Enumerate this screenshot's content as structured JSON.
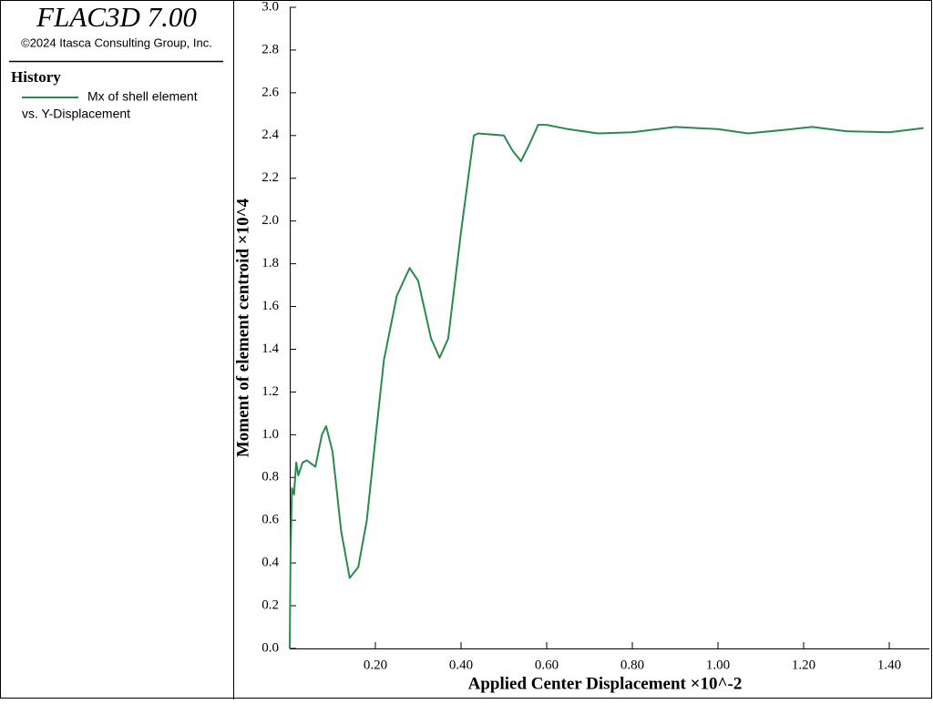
{
  "panel": {
    "product": "FLAC3D 7.00",
    "copyright": "©2024 Itasca Consulting Group, Inc.",
    "section": "History",
    "legend_note": "vs. Y-Displacement"
  },
  "chart_data": {
    "type": "line",
    "xlabel": "Applied Center Displacement ×10^-2",
    "ylabel": "Moment of element centroid  ×10^4",
    "x": [
      0,
      0.002,
      0.005,
      0.01,
      0.015,
      0.02,
      0.03,
      0.04,
      0.06,
      0.075,
      0.085,
      0.1,
      0.12,
      0.14,
      0.16,
      0.18,
      0.2,
      0.22,
      0.25,
      0.28,
      0.3,
      0.33,
      0.35,
      0.37,
      0.4,
      0.43,
      0.44,
      0.5,
      0.52,
      0.54,
      0.56,
      0.58,
      0.6,
      0.65,
      0.72,
      0.8,
      0.9,
      1.0,
      1.07,
      1.15,
      1.22,
      1.3,
      1.4,
      1.48
    ],
    "series": [
      {
        "name": "Mx of shell element",
        "color": "#2a8a4e",
        "values": [
          0,
          0.45,
          0.75,
          0.72,
          0.87,
          0.81,
          0.87,
          0.88,
          0.85,
          1.0,
          1.04,
          0.92,
          0.55,
          0.33,
          0.38,
          0.6,
          0.98,
          1.35,
          1.65,
          1.78,
          1.72,
          1.45,
          1.36,
          1.45,
          1.95,
          2.4,
          2.41,
          2.4,
          2.33,
          2.28,
          2.36,
          2.45,
          2.45,
          2.43,
          2.41,
          2.415,
          2.44,
          2.43,
          2.41,
          2.425,
          2.44,
          2.42,
          2.415,
          2.435
        ]
      }
    ],
    "xlim": [
      0,
      1.5
    ],
    "ylim": [
      0,
      3
    ],
    "xticks": [
      {
        "value": 0.2,
        "label": "0.20"
      },
      {
        "value": 0.4,
        "label": "0.40"
      },
      {
        "value": 0.6,
        "label": "0.60"
      },
      {
        "value": 0.8,
        "label": "0.80"
      },
      {
        "value": 1,
        "label": "1.00"
      },
      {
        "value": 1.2,
        "label": "1.20"
      },
      {
        "value": 1.4,
        "label": "1.40"
      }
    ],
    "yticks": [
      {
        "value": 0,
        "label": "0.0"
      },
      0.2,
      0.4,
      0.6,
      0.8,
      {
        "value": 1,
        "label": "1.0"
      },
      1.2,
      1.4,
      1.6,
      1.8,
      {
        "value": 2,
        "label": "2.0"
      },
      2.2,
      2.4,
      2.6,
      2.8,
      {
        "value": 3,
        "label": "3.0"
      }
    ]
  }
}
